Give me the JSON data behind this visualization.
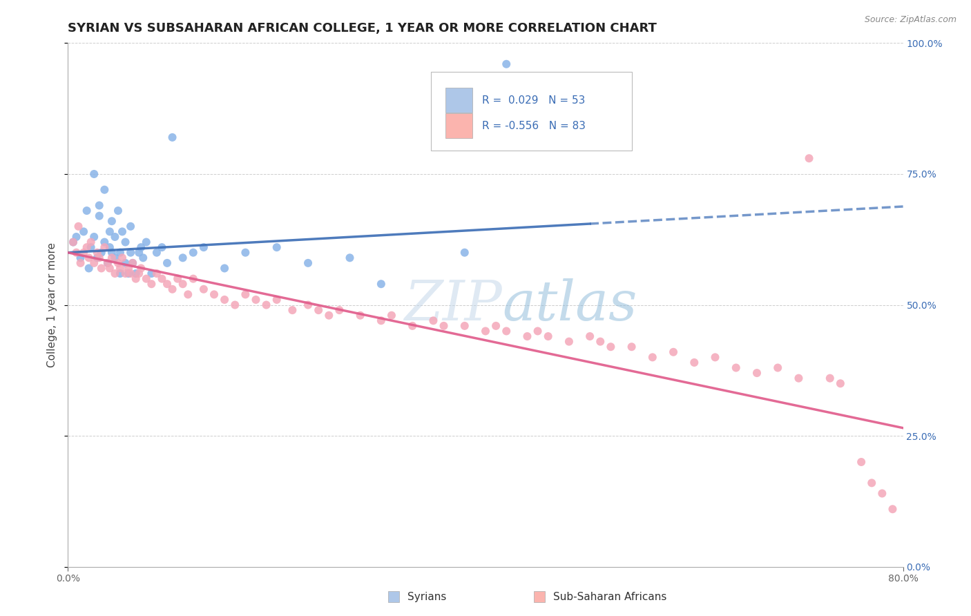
{
  "title": "SYRIAN VS SUBSAHARAN AFRICAN COLLEGE, 1 YEAR OR MORE CORRELATION CHART",
  "source_text": "Source: ZipAtlas.com",
  "xlabel": "",
  "ylabel": "College, 1 year or more",
  "xlim": [
    0.0,
    0.8
  ],
  "ylim": [
    0.0,
    1.0
  ],
  "xtick_labels": [
    "0.0%",
    "80.0%"
  ],
  "ytick_labels_right": [
    "0.0%",
    "25.0%",
    "50.0%",
    "75.0%",
    "100.0%"
  ],
  "legend_r1_val": "0.029",
  "legend_r2_val": "-0.556",
  "legend_n1": "53",
  "legend_n2": "83",
  "blue_scatter_color": "#8ab4e8",
  "pink_scatter_color": "#f4a7b9",
  "blue_line_color": "#3b6db5",
  "pink_line_color": "#e05a8a",
  "blue_legend_fill": "#aec7e8",
  "pink_legend_fill": "#fbb4ae",
  "background_color": "#ffffff",
  "grid_color": "#c8c8c8",
  "title_fontsize": 13,
  "axis_label_fontsize": 11,
  "tick_fontsize": 10,
  "syrians_label": "Syrians",
  "subsaharan_label": "Sub-Saharan Africans",
  "watermark_color": "#c0d4e8",
  "watermark_alpha": 0.5,
  "syrian_x": [
    0.005,
    0.008,
    0.012,
    0.015,
    0.018,
    0.02,
    0.022,
    0.025,
    0.025,
    0.028,
    0.03,
    0.03,
    0.032,
    0.035,
    0.035,
    0.038,
    0.04,
    0.04,
    0.042,
    0.042,
    0.045,
    0.045,
    0.048,
    0.05,
    0.05,
    0.052,
    0.055,
    0.055,
    0.058,
    0.06,
    0.06,
    0.062,
    0.065,
    0.068,
    0.07,
    0.072,
    0.075,
    0.08,
    0.085,
    0.09,
    0.095,
    0.1,
    0.11,
    0.12,
    0.13,
    0.15,
    0.17,
    0.2,
    0.23,
    0.27,
    0.3,
    0.38,
    0.42
  ],
  "syrian_y": [
    0.62,
    0.63,
    0.59,
    0.64,
    0.68,
    0.57,
    0.61,
    0.63,
    0.75,
    0.59,
    0.67,
    0.69,
    0.6,
    0.62,
    0.72,
    0.58,
    0.61,
    0.64,
    0.6,
    0.66,
    0.59,
    0.63,
    0.68,
    0.56,
    0.6,
    0.64,
    0.58,
    0.62,
    0.56,
    0.6,
    0.65,
    0.58,
    0.56,
    0.6,
    0.61,
    0.59,
    0.62,
    0.56,
    0.6,
    0.61,
    0.58,
    0.82,
    0.59,
    0.6,
    0.61,
    0.57,
    0.6,
    0.61,
    0.58,
    0.59,
    0.54,
    0.6,
    0.96
  ],
  "subsaharan_x": [
    0.005,
    0.008,
    0.01,
    0.012,
    0.015,
    0.018,
    0.02,
    0.022,
    0.025,
    0.028,
    0.03,
    0.032,
    0.035,
    0.038,
    0.04,
    0.042,
    0.045,
    0.048,
    0.05,
    0.052,
    0.055,
    0.058,
    0.06,
    0.062,
    0.065,
    0.068,
    0.07,
    0.075,
    0.08,
    0.085,
    0.09,
    0.095,
    0.1,
    0.105,
    0.11,
    0.115,
    0.12,
    0.13,
    0.14,
    0.15,
    0.16,
    0.17,
    0.18,
    0.19,
    0.2,
    0.215,
    0.23,
    0.24,
    0.25,
    0.26,
    0.28,
    0.3,
    0.31,
    0.33,
    0.35,
    0.36,
    0.38,
    0.4,
    0.41,
    0.42,
    0.44,
    0.45,
    0.46,
    0.48,
    0.5,
    0.51,
    0.52,
    0.54,
    0.56,
    0.58,
    0.6,
    0.62,
    0.64,
    0.66,
    0.68,
    0.7,
    0.71,
    0.73,
    0.74,
    0.76,
    0.77,
    0.78,
    0.79
  ],
  "subsaharan_y": [
    0.62,
    0.6,
    0.65,
    0.58,
    0.6,
    0.61,
    0.59,
    0.62,
    0.58,
    0.6,
    0.59,
    0.57,
    0.61,
    0.58,
    0.57,
    0.59,
    0.56,
    0.58,
    0.57,
    0.59,
    0.56,
    0.57,
    0.56,
    0.58,
    0.55,
    0.56,
    0.57,
    0.55,
    0.54,
    0.56,
    0.55,
    0.54,
    0.53,
    0.55,
    0.54,
    0.52,
    0.55,
    0.53,
    0.52,
    0.51,
    0.5,
    0.52,
    0.51,
    0.5,
    0.51,
    0.49,
    0.5,
    0.49,
    0.48,
    0.49,
    0.48,
    0.47,
    0.48,
    0.46,
    0.47,
    0.46,
    0.46,
    0.45,
    0.46,
    0.45,
    0.44,
    0.45,
    0.44,
    0.43,
    0.44,
    0.43,
    0.42,
    0.42,
    0.4,
    0.41,
    0.39,
    0.4,
    0.38,
    0.37,
    0.38,
    0.36,
    0.78,
    0.36,
    0.35,
    0.2,
    0.16,
    0.14,
    0.11
  ]
}
